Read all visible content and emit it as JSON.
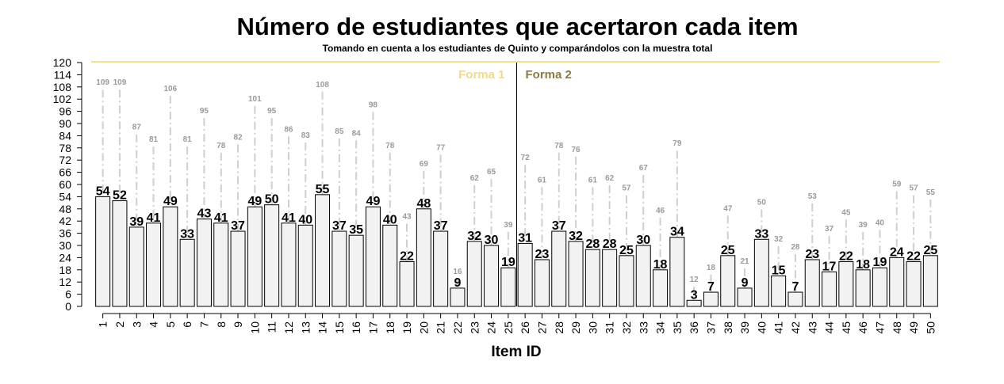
{
  "chart_data": {
    "type": "bar",
    "title": "Número de estudiantes que acertaron cada item",
    "subtitle": "Tomando en cuenta a los estudiantes de Quinto y comparándolos con la muestra total",
    "xlabel": "Item ID",
    "ylabel": "",
    "ylim": [
      0,
      120
    ],
    "yticks": [
      0,
      6,
      12,
      18,
      24,
      30,
      36,
      42,
      48,
      54,
      60,
      66,
      72,
      78,
      84,
      90,
      96,
      102,
      108,
      114,
      120
    ],
    "categories": [
      "1",
      "2",
      "3",
      "4",
      "5",
      "6",
      "7",
      "8",
      "9",
      "10",
      "11",
      "12",
      "13",
      "14",
      "15",
      "16",
      "17",
      "18",
      "19",
      "20",
      "21",
      "22",
      "23",
      "24",
      "25",
      "26",
      "27",
      "28",
      "29",
      "30",
      "31",
      "32",
      "33",
      "34",
      "35",
      "36",
      "37",
      "38",
      "39",
      "40",
      "41",
      "42",
      "43",
      "44",
      "45",
      "46",
      "47",
      "48",
      "49",
      "50"
    ],
    "series": [
      {
        "values": [
          54,
          52,
          39,
          41,
          49,
          33,
          43,
          41,
          37,
          49,
          50,
          41,
          40,
          55,
          37,
          35,
          49,
          40,
          22,
          48,
          37,
          9,
          32,
          30,
          19,
          31,
          23,
          37,
          32,
          28,
          28,
          25,
          30,
          18,
          34,
          3,
          7,
          25,
          9,
          33,
          15,
          7,
          23,
          17,
          22,
          18,
          19,
          24,
          22,
          25
        ],
        "color": "#f2f2f2"
      },
      {
        "values": [
          109,
          109,
          87,
          81,
          106,
          81,
          95,
          78,
          82,
          101,
          95,
          86,
          83,
          108,
          85,
          84,
          98,
          78,
          43,
          69,
          77,
          16,
          62,
          65,
          39,
          72,
          61,
          78,
          76,
          61,
          62,
          57,
          67,
          46,
          79,
          12,
          18,
          47,
          21,
          50,
          32,
          28,
          53,
          37,
          45,
          39,
          40,
          59,
          57,
          55
        ],
        "color": "#9a9a9a"
      }
    ],
    "annotations": [
      {
        "text": "Forma 1",
        "color": "#f0d98a"
      },
      {
        "text": "Forma 2",
        "color": "#8a7a48"
      }
    ],
    "grid": false,
    "reference_line_color": "#f3e08a"
  }
}
